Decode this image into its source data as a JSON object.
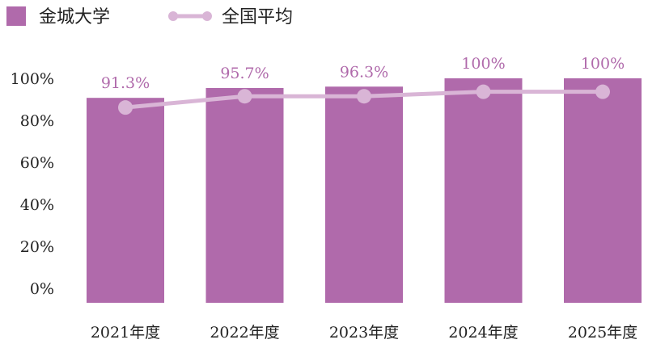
{
  "chart_data": {
    "type": "bar",
    "categories": [
      "2021年度",
      "2022年度",
      "2023年度",
      "2024年度",
      "2025年度"
    ],
    "series": [
      {
        "name": "金城大学",
        "kind": "bar",
        "values": [
          91.3,
          95.7,
          96.3,
          100,
          100
        ],
        "labels": [
          "91.3%",
          "95.7%",
          "96.3%",
          "100%",
          "100%"
        ],
        "color": "#b06aab"
      },
      {
        "name": "全国平均",
        "kind": "line",
        "values": [
          87,
          92,
          92,
          94,
          94
        ],
        "color": "#d9b5d6"
      }
    ],
    "yticks": [
      "0%",
      "20%",
      "40%",
      "60%",
      "80%",
      "100%"
    ],
    "ylim": [
      0,
      100
    ],
    "grid": false,
    "legend_position": "top-left"
  }
}
